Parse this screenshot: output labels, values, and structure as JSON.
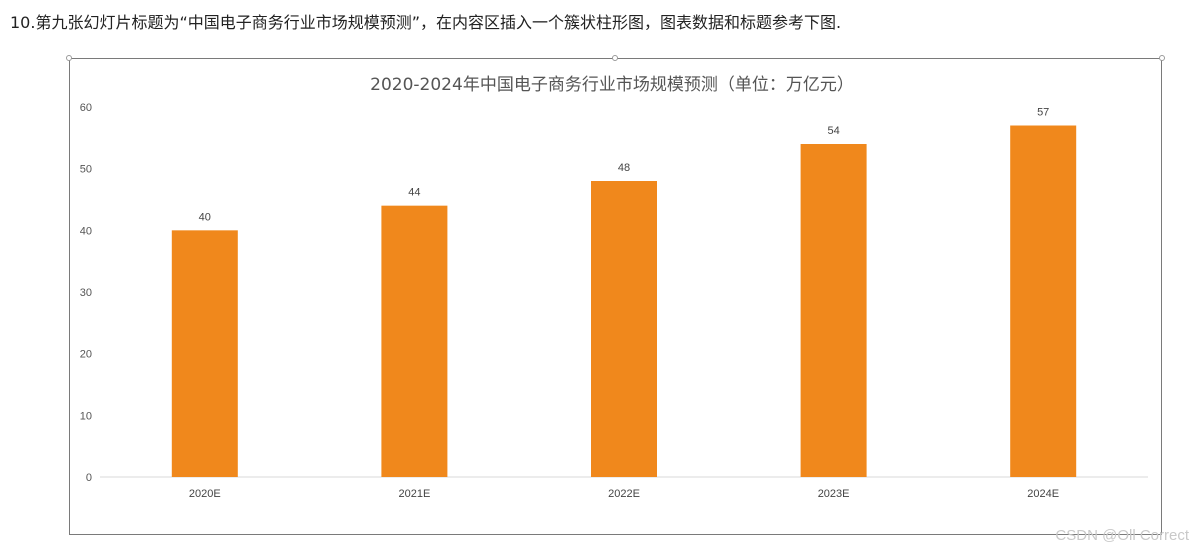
{
  "instruction_text": "10.第九张幻灯片标题为“中国电子商务行业市场规模预测”，在内容区插入一个簇状柱形图，图表数据和标题参考下图.",
  "watermark": "CSDN @Oll Correct",
  "bar_color": "#F0881C",
  "chart_data": {
    "type": "bar",
    "title": "2020-2024年中国电子商务行业市场规模预测（单位：万亿元）",
    "categories": [
      "2020E",
      "2021E",
      "2022E",
      "2023E",
      "2024E"
    ],
    "values": [
      40,
      44,
      48,
      54,
      57
    ],
    "yticks": [
      0,
      10,
      20,
      30,
      40,
      50,
      60
    ],
    "ylim": [
      0,
      60
    ],
    "grid": false,
    "legend": "none",
    "data_labels": true
  }
}
